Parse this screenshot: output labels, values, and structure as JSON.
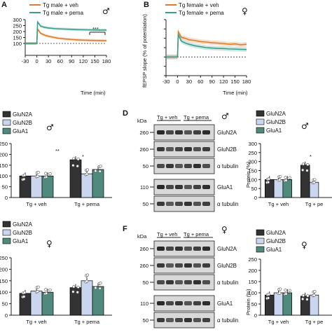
{
  "panels": {
    "A": {
      "letter": "A",
      "sex": "♂",
      "legend": [
        "Tg male + veh",
        "Tg male + pema"
      ],
      "sig": "***",
      "xlabel": "Time (min)"
    },
    "B": {
      "letter": "B",
      "sex": "♀",
      "legend": [
        "Tg female + veh",
        "Tg female + pema"
      ],
      "ylabel": "fEPSP slope (% of potentiation)",
      "xlabel": "Time (min)"
    },
    "C": {
      "legend": [
        "GluN2A",
        "GluN2B",
        "GluA1"
      ],
      "sex": "♂",
      "star_a": "**",
      "star_b": "*",
      "groups": [
        "Tg + veh",
        "Tg + pema"
      ]
    },
    "D": {
      "letter": "D",
      "sex": "♂",
      "kda": "kDa",
      "groups": [
        "Tg + veh",
        "Tg + pema"
      ],
      "markers": [
        "260",
        "260",
        "50",
        "110",
        "50"
      ],
      "bands": [
        "GluN2A",
        "GluN2B",
        "α tubulin",
        "GluA1",
        "α tubulin"
      ]
    },
    "Dq": {
      "legend": [
        "GluN2A",
        "GluN2B",
        "GluA1"
      ],
      "sex": "♂",
      "ylabel": "Protein (%)",
      "star": "*",
      "groups": [
        "Tg + veh",
        "Tg + pe"
      ]
    },
    "E": {
      "legend": [
        "GluN2A",
        "GluN2B",
        "GluA1"
      ],
      "sex": "♀",
      "groups": [
        "Tg + veh",
        "Tg + pema"
      ]
    },
    "F": {
      "letter": "F",
      "sex": "♀",
      "kda": "kDa",
      "groups": [
        "Tg + veh",
        "Tg + pema"
      ],
      "markers": [
        "260",
        "260",
        "50",
        "110",
        "50"
      ],
      "bands": [
        "GluN2A",
        "GluN2B",
        "α tubulin",
        "GluA1",
        "α tubulin"
      ]
    },
    "Fq": {
      "legend": [
        "GluN2A",
        "GluN2B",
        "GluA1"
      ],
      "sex": "♀",
      "ylabel": "Protein (%)",
      "groups": [
        "Tg + veh",
        "Tg + pe"
      ]
    }
  },
  "colors": {
    "veh": "#e07b2a",
    "pema": "#3a9e8c",
    "glun2a": "#333333",
    "glun2b": "#c9d6ee",
    "glua1": "#4f8a7c"
  },
  "chart_data": [
    {
      "type": "line",
      "panel": "A",
      "xlim": [
        -30,
        180
      ],
      "ylim": [
        0,
        300
      ],
      "xticks": [
        -30,
        0,
        30,
        60,
        90,
        120,
        150,
        180
      ],
      "yticks": [
        100,
        150,
        200,
        250,
        300
      ],
      "series": [
        {
          "name": "Tg male + veh",
          "x": [
            -30,
            0,
            2,
            10,
            20,
            30,
            45,
            60,
            75,
            90,
            105,
            120,
            135,
            150,
            165,
            180
          ],
          "y": [
            100,
            100,
            220,
            185,
            170,
            160,
            150,
            142,
            137,
            133,
            130,
            128,
            126,
            125,
            124,
            123
          ]
        },
        {
          "name": "Tg male + pema",
          "x": [
            -30,
            0,
            2,
            10,
            20,
            30,
            45,
            60,
            75,
            90,
            105,
            120,
            135,
            150,
            165,
            180
          ],
          "y": [
            100,
            100,
            280,
            245,
            235,
            230,
            225,
            222,
            220,
            218,
            216,
            215,
            214,
            213,
            212,
            212
          ]
        }
      ]
    },
    {
      "type": "line",
      "panel": "B",
      "xlim": [
        -30,
        180
      ],
      "ylim": [
        0,
        300
      ],
      "xticks": [
        -30,
        0,
        30,
        60,
        90,
        120,
        150,
        180
      ],
      "yticks": [
        0,
        50,
        100,
        150,
        200,
        250,
        300
      ],
      "series": [
        {
          "name": "Tg female + veh",
          "x": [
            -30,
            0,
            2,
            10,
            20,
            30,
            45,
            60,
            75,
            90,
            105,
            120,
            135,
            150,
            165,
            180
          ],
          "y": [
            100,
            100,
            235,
            205,
            200,
            192,
            188,
            182,
            180,
            176,
            174,
            172,
            168,
            170,
            165,
            168
          ]
        },
        {
          "name": "Tg female + pema",
          "x": [
            -30,
            0,
            2,
            10,
            20,
            30,
            45,
            60,
            75,
            90,
            105,
            120,
            135,
            150,
            165,
            180
          ],
          "y": [
            100,
            100,
            220,
            185,
            175,
            168,
            160,
            155,
            150,
            148,
            146,
            145,
            143,
            142,
            141,
            140
          ]
        }
      ]
    },
    {
      "type": "bar",
      "panel": "C",
      "ylim": [
        0,
        250
      ],
      "yticks": [
        0,
        50,
        100,
        150,
        200,
        250
      ],
      "categories": [
        "Tg + veh",
        "Tg + pema"
      ],
      "series": [
        {
          "name": "GluN2A",
          "values": [
            100,
            175
          ]
        },
        {
          "name": "GluN2B",
          "values": [
            100,
            110
          ]
        },
        {
          "name": "GluA1",
          "values": [
            100,
            130
          ]
        }
      ]
    },
    {
      "type": "bar",
      "panel": "Dq",
      "ylim": [
        0,
        300
      ],
      "yticks": [
        0,
        50,
        100,
        150,
        200,
        250,
        300
      ],
      "categories": [
        "Tg + veh",
        "Tg + pe"
      ],
      "series": [
        {
          "name": "GluN2A",
          "values": [
            100,
            180
          ]
        },
        {
          "name": "GluN2B",
          "values": [
            100,
            85
          ]
        },
        {
          "name": "GluA1",
          "values": [
            100,
            0
          ]
        }
      ]
    },
    {
      "type": "bar",
      "panel": "E",
      "ylim": [
        0,
        250
      ],
      "yticks": [
        0,
        50,
        100,
        150,
        200,
        250
      ],
      "categories": [
        "Tg + veh",
        "Tg + pema"
      ],
      "series": [
        {
          "name": "GluN2A",
          "values": [
            95,
            120
          ]
        },
        {
          "name": "GluN2B",
          "values": [
            105,
            150
          ]
        },
        {
          "name": "GluA1",
          "values": [
            100,
            125
          ]
        }
      ]
    },
    {
      "type": "bar",
      "panel": "Fq",
      "ylim": [
        0,
        250
      ],
      "yticks": [
        0,
        50,
        100,
        150,
        200,
        250
      ],
      "categories": [
        "Tg + veh",
        "Tg + pe"
      ],
      "series": [
        {
          "name": "GluN2A",
          "values": [
            90,
            85
          ]
        },
        {
          "name": "GluN2B",
          "values": [
            100,
            90
          ]
        },
        {
          "name": "GluA1",
          "values": [
            100,
            0
          ]
        }
      ]
    }
  ]
}
